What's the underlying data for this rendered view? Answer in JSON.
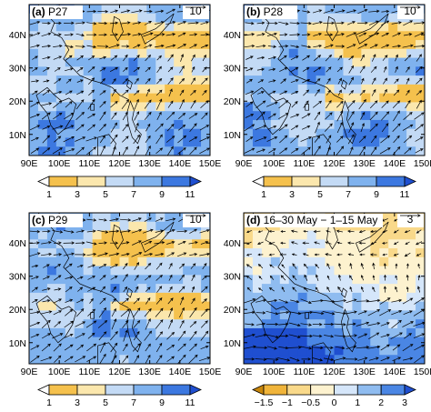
{
  "panels": [
    {
      "id": "a",
      "letter": "(a)",
      "title": "P27",
      "ref_value": "10",
      "lat_labels": [
        "40N",
        "30N",
        "20N",
        "10N"
      ],
      "lon_labels": [
        "90E",
        "100E",
        "110E",
        "120E",
        "130E",
        "140E",
        "150E"
      ],
      "colorbar": {
        "labels": [
          "1",
          "3",
          "5",
          "7",
          "9",
          "11"
        ],
        "colors": [
          "#ffffff",
          "#f5c14d",
          "#fbe7ad",
          "#c3daf5",
          "#7fb2ee",
          "#3c78e0",
          "#1f4fd0"
        ]
      }
    },
    {
      "id": "b",
      "letter": "(b)",
      "title": "P28",
      "ref_value": "10",
      "lat_labels": [
        "40N",
        "30N",
        "20N",
        "10N"
      ],
      "lon_labels": [
        "90E",
        "100E",
        "110E",
        "120E",
        "130E",
        "140E",
        "150E"
      ],
      "colorbar": {
        "labels": [
          "1",
          "3",
          "5",
          "7",
          "9",
          "11"
        ],
        "colors": [
          "#ffffff",
          "#f5c14d",
          "#fbe7ad",
          "#c3daf5",
          "#7fb2ee",
          "#3c78e0",
          "#1f4fd0"
        ]
      }
    },
    {
      "id": "c",
      "letter": "(c)",
      "title": "P29",
      "ref_value": "10",
      "lat_labels": [
        "40N",
        "30N",
        "20N",
        "10N"
      ],
      "lon_labels": [
        "90E",
        "100E",
        "110E",
        "120E",
        "130E",
        "140E",
        "150E"
      ],
      "colorbar": {
        "labels": [
          "1",
          "3",
          "5",
          "7",
          "9",
          "11"
        ],
        "colors": [
          "#ffffff",
          "#f5c14d",
          "#fbe7ad",
          "#c3daf5",
          "#7fb2ee",
          "#3c78e0",
          "#1f4fd0"
        ]
      }
    },
    {
      "id": "d",
      "letter": "(d)",
      "title": "16–30 May − 1–15 May",
      "ref_value": "3",
      "lat_labels": [
        "40N",
        "30N",
        "20N",
        "10N"
      ],
      "lon_labels": [
        "90E",
        "100E",
        "110E",
        "120E",
        "130E",
        "140E",
        "150E"
      ],
      "colorbar": {
        "labels": [
          "−1.5",
          "−1",
          "−0.5",
          "0",
          "1",
          "2",
          "3"
        ],
        "colors": [
          "#c8860a",
          "#f0b43a",
          "#f9d98a",
          "#fdf2cf",
          "#d5e6fa",
          "#8fbcf0",
          "#4a86e4",
          "#1f4fd0"
        ]
      }
    }
  ],
  "colors": {
    "blue_dark": "#1f4fd0",
    "blue_mid": "#7fb2ee",
    "blue_light": "#c3daf5",
    "yellow": "#f5c14d",
    "yellow_light": "#fbe7ad"
  },
  "icons": {
    "vector": "arrow-icon",
    "reference": "reference-arrow-icon"
  }
}
